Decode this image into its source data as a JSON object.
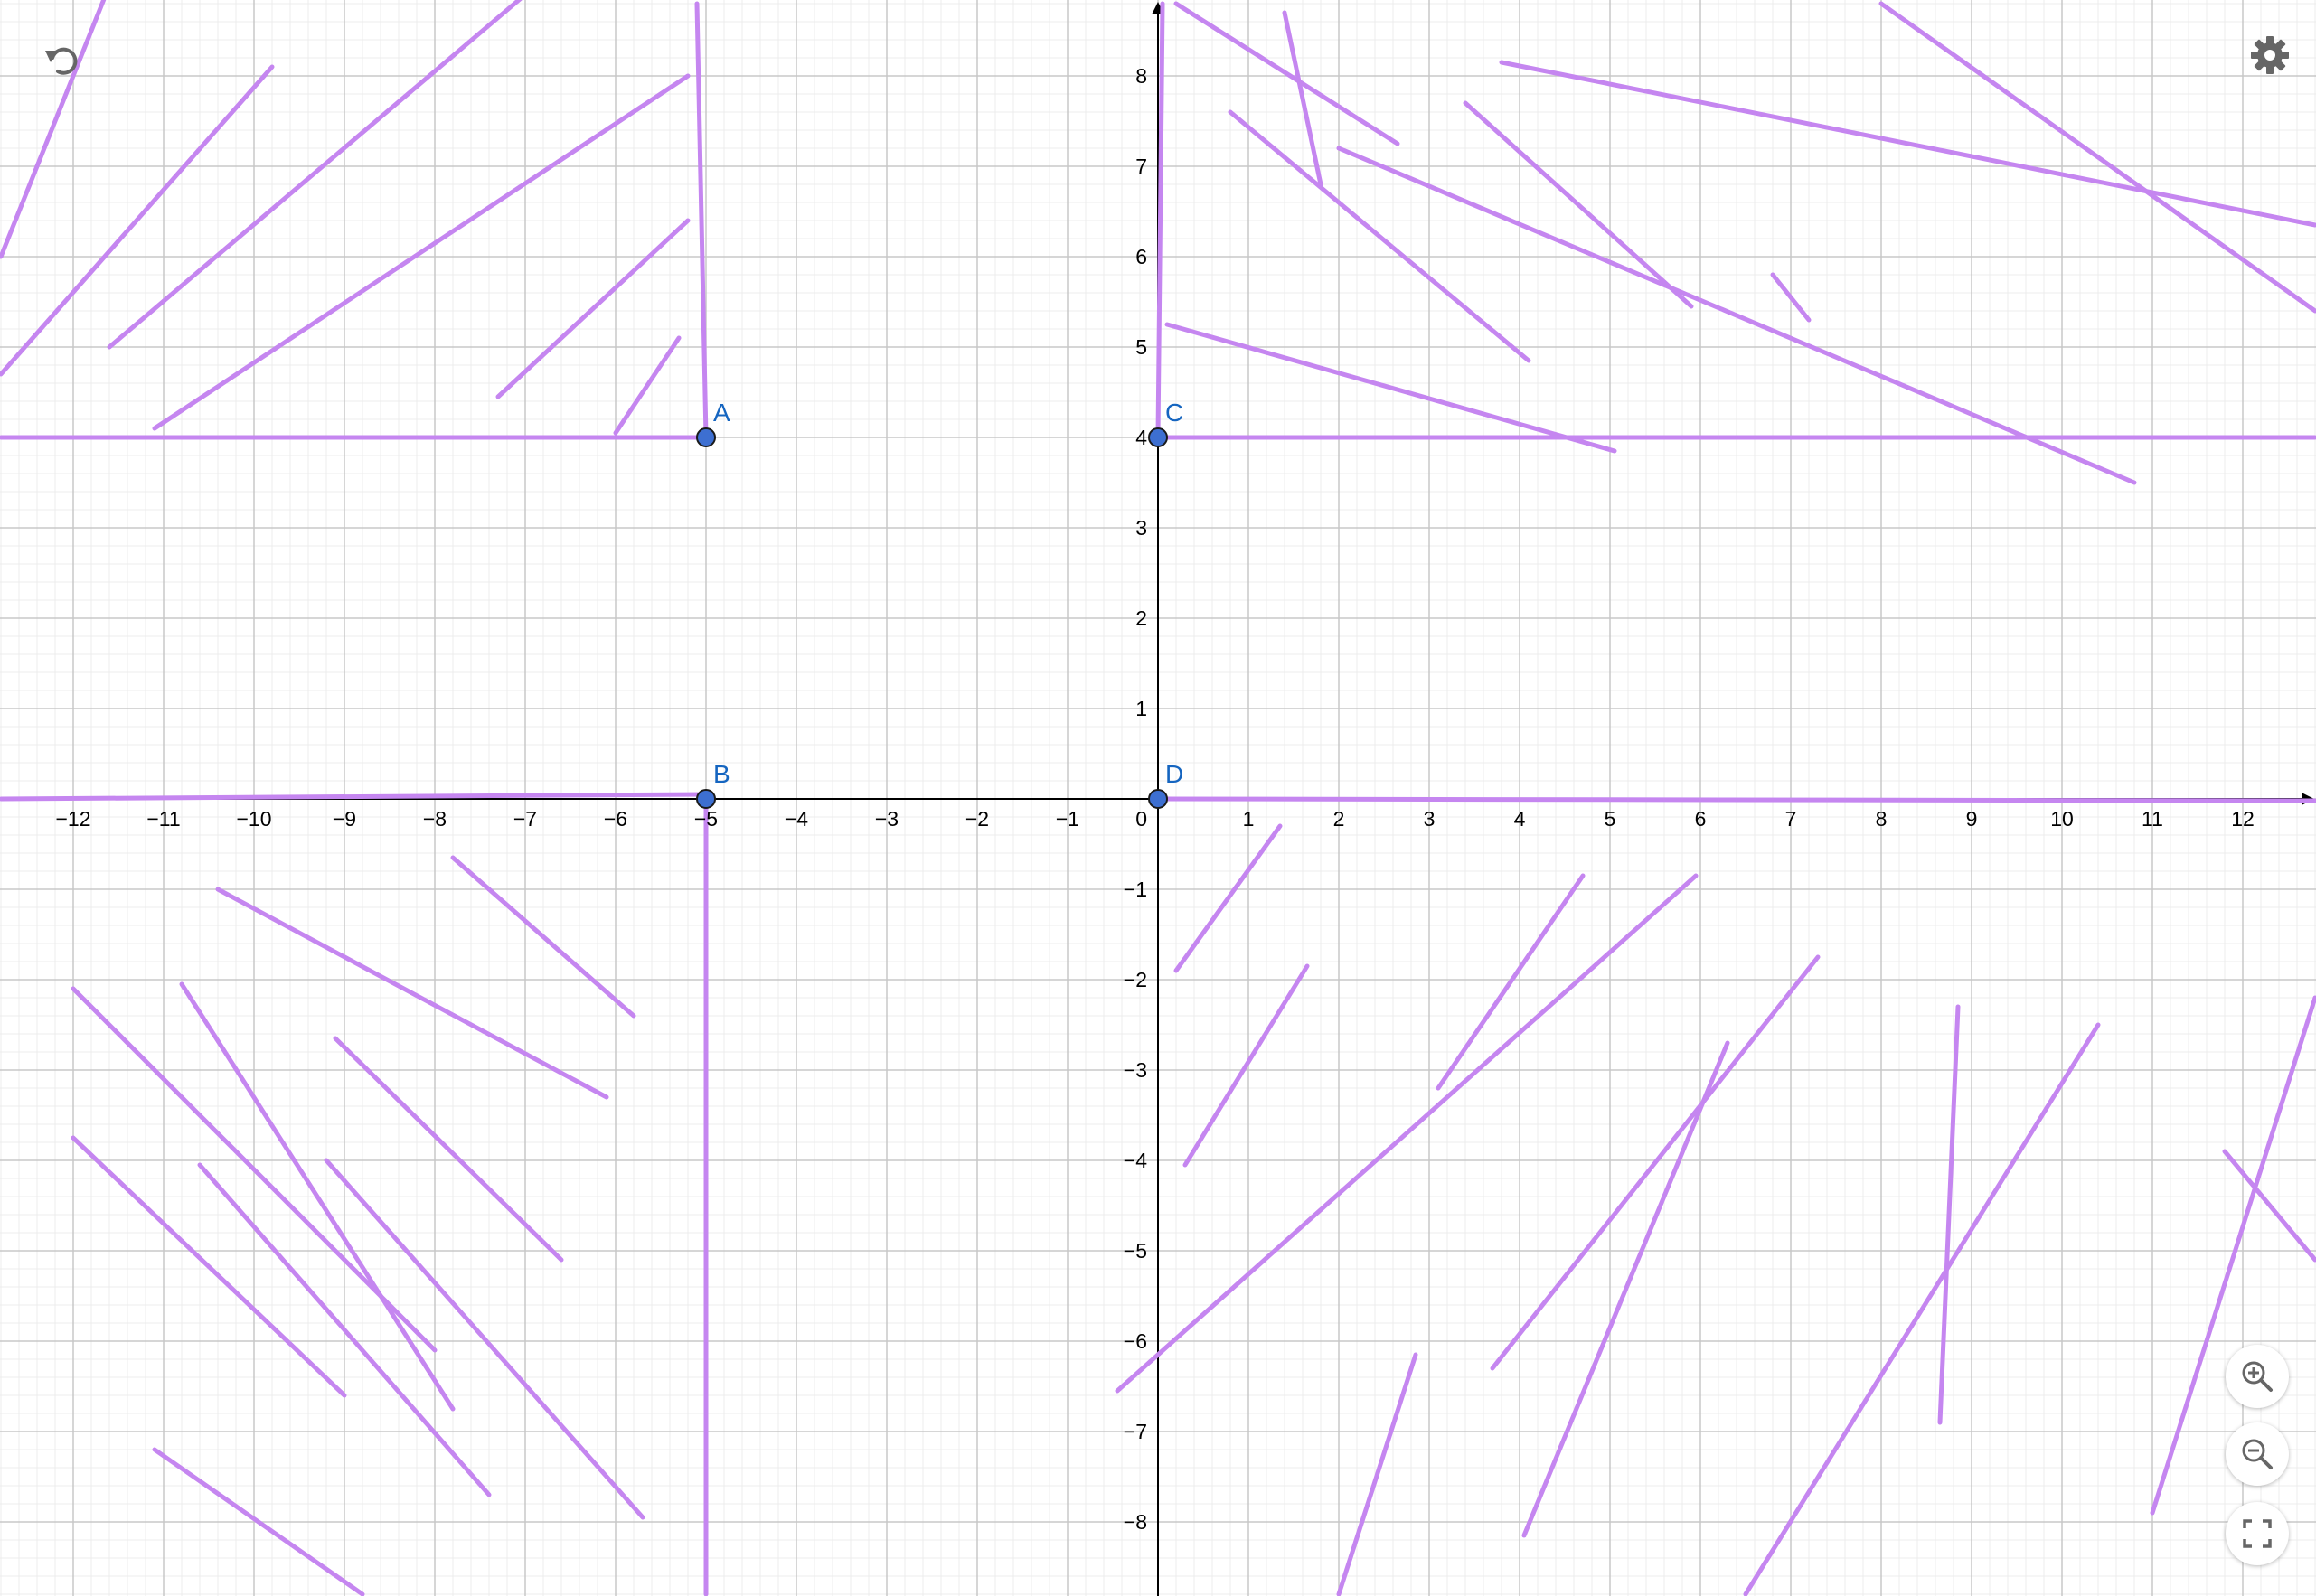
{
  "app": {
    "undo_icon": "undo-icon",
    "settings_icon": "gear-icon",
    "zoom_in_icon": "zoom-in-icon",
    "zoom_out_icon": "zoom-out-icon",
    "fullscreen_icon": "fullscreen-icon"
  },
  "colors": {
    "segment": "#c586f0",
    "point_fill": "#3d6fd1",
    "point_label": "#1565c0",
    "axis": "#000000",
    "major_grid": "#c8c8c8",
    "minor_grid": "#ececec",
    "toolbar_icon": "#666666"
  },
  "axes": {
    "xlim": [
      -12.8,
      12.8
    ],
    "ylim": [
      -8.8,
      8.8
    ],
    "x_ticks": [
      "−12",
      "−11",
      "−10",
      "−9",
      "−8",
      "−7",
      "−6",
      "−5",
      "−4",
      "−3",
      "−2",
      "−1",
      "1",
      "2",
      "3",
      "4",
      "5",
      "6",
      "7",
      "8",
      "9",
      "10",
      "11",
      "12"
    ],
    "y_ticks": [
      "8",
      "7",
      "6",
      "5",
      "4",
      "3",
      "2",
      "1",
      "−1",
      "−2",
      "−3",
      "−4",
      "−5",
      "−6",
      "−7",
      "−8"
    ],
    "origin_label": "0",
    "grid": true
  },
  "points": [
    {
      "label": "A",
      "x": -5,
      "y": 4
    },
    {
      "label": "B",
      "x": -5,
      "y": 0
    },
    {
      "label": "C",
      "x": 0,
      "y": 4
    },
    {
      "label": "D",
      "x": 0,
      "y": 0
    }
  ],
  "segments": [
    [
      -12.8,
      0,
      -5,
      0.05
    ],
    [
      -5,
      0.05,
      -5,
      -8.8
    ],
    [
      0,
      0,
      12.8,
      -0.02
    ],
    [
      -12.8,
      4.0,
      -5,
      4.0
    ],
    [
      -5,
      4.0,
      -5.1,
      8.8
    ],
    [
      0,
      4.0,
      12.8,
      4.0
    ],
    [
      0,
      4.0,
      0.05,
      8.8
    ],
    [
      -12.8,
      6.0,
      -11.6,
      9.0
    ],
    [
      -12.8,
      4.7,
      -9.8,
      8.1
    ],
    [
      -11.6,
      5.0,
      -7.0,
      8.9
    ],
    [
      -11.1,
      4.1,
      -5.2,
      8.0
    ],
    [
      -7.3,
      4.45,
      -5.2,
      6.4
    ],
    [
      -6.0,
      4.05,
      -5.3,
      5.1
    ],
    [
      0.2,
      8.8,
      2.65,
      7.25
    ],
    [
      1.4,
      8.7,
      1.8,
      6.8
    ],
    [
      0.8,
      7.6,
      4.1,
      4.85
    ],
    [
      2.0,
      7.2,
      10.8,
      3.5
    ],
    [
      3.4,
      7.7,
      5.9,
      5.45
    ],
    [
      3.8,
      8.15,
      12.8,
      6.35
    ],
    [
      8.0,
      8.8,
      12.8,
      5.4
    ],
    [
      6.8,
      5.8,
      7.2,
      5.3
    ],
    [
      0.1,
      5.25,
      5.05,
      3.85
    ],
    [
      -12.0,
      -2.1,
      -8.0,
      -6.1
    ],
    [
      -12.0,
      -3.75,
      -9.0,
      -6.6
    ],
    [
      -10.8,
      -2.05,
      -7.8,
      -6.75
    ],
    [
      -10.6,
      -4.05,
      -7.4,
      -7.7
    ],
    [
      -9.2,
      -4.0,
      -5.7,
      -7.95
    ],
    [
      -10.4,
      -1.0,
      -6.1,
      -3.3
    ],
    [
      -9.1,
      -2.65,
      -6.6,
      -5.1
    ],
    [
      -7.8,
      -0.65,
      -5.8,
      -2.4
    ],
    [
      -11.1,
      -7.2,
      -8.8,
      -8.8
    ],
    [
      0.2,
      -1.9,
      1.35,
      -0.3
    ],
    [
      0.3,
      -4.05,
      1.65,
      -1.85
    ],
    [
      -0.45,
      -6.55,
      5.95,
      -0.85
    ],
    [
      3.1,
      -3.2,
      4.7,
      -0.85
    ],
    [
      3.7,
      -6.3,
      7.3,
      -1.75
    ],
    [
      4.05,
      -8.15,
      6.3,
      -2.7
    ],
    [
      2.0,
      -8.8,
      2.85,
      -6.15
    ],
    [
      8.65,
      -6.9,
      8.85,
      -2.3
    ],
    [
      6.5,
      -8.8,
      10.4,
      -2.5
    ],
    [
      11.0,
      -7.9,
      12.8,
      -2.2
    ],
    [
      11.8,
      -3.9,
      12.8,
      -5.1
    ]
  ]
}
